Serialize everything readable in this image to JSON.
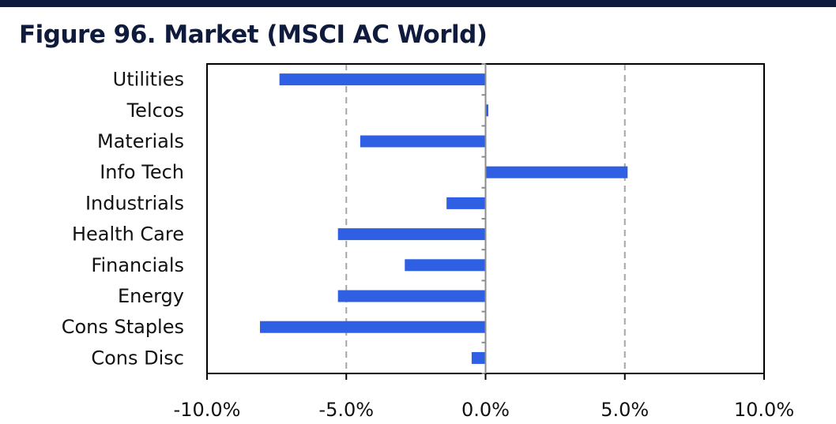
{
  "title": "Figure 96. Market (MSCI AC World)",
  "chart_data": {
    "type": "bar",
    "orientation": "horizontal",
    "title": "Figure 96. Market (MSCI AC World)",
    "categories": [
      "Utilities",
      "Telcos",
      "Materials",
      "Info Tech",
      "Industrials",
      "Health Care",
      "Financials",
      "Energy",
      "Cons Staples",
      "Cons Disc"
    ],
    "values": [
      -7.4,
      0.1,
      -4.5,
      5.1,
      -1.4,
      -5.3,
      -2.9,
      -5.3,
      -8.1,
      -0.5
    ],
    "xlim": [
      -10,
      10
    ],
    "xticks": [
      -10,
      -5,
      0,
      5,
      10
    ],
    "xtick_labels": [
      "-10.0%",
      "-5.0%",
      "0.0%",
      "5.0%",
      "10.0%"
    ],
    "xlabel": "",
    "ylabel": "",
    "grid": "vertical dashed",
    "legend": "none",
    "bar_color": "#2f5fe3"
  }
}
